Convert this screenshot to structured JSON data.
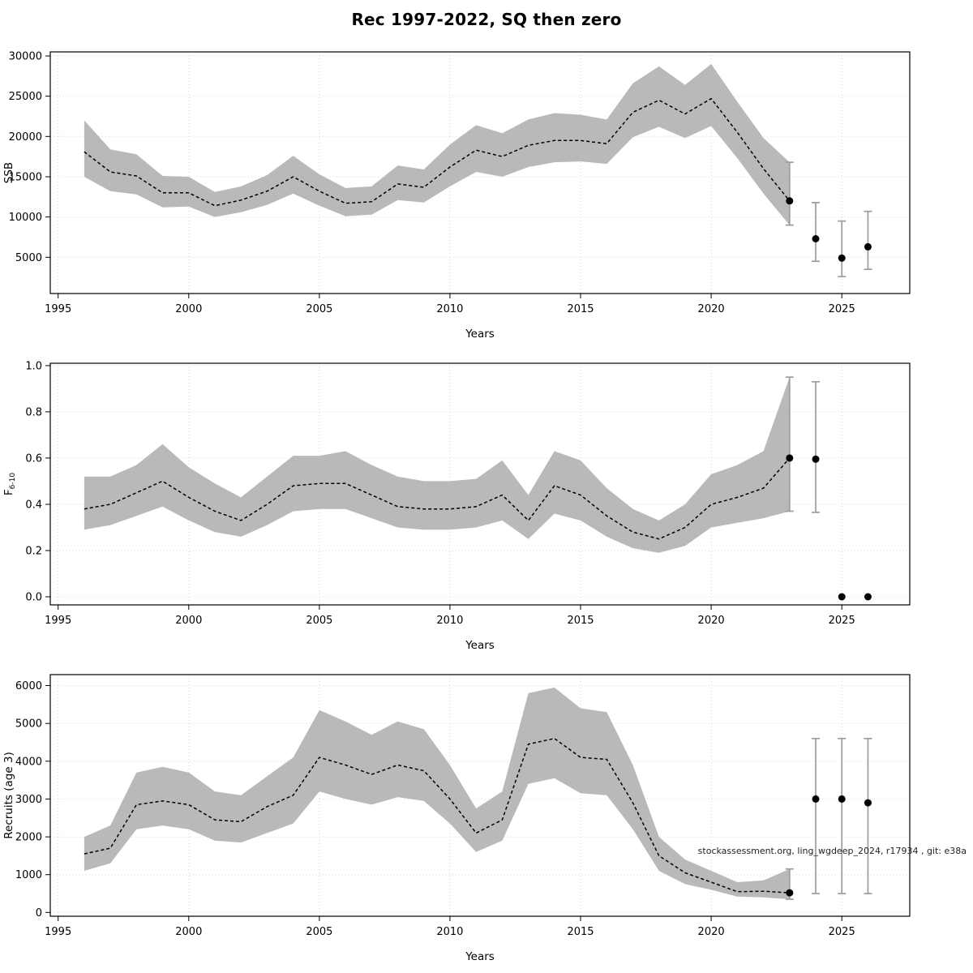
{
  "title": "Rec 1997-2022, SQ then zero",
  "watermark": "stockassessment.org, ling_wgdeep_2024, r17934 , git: e38a",
  "colors": {
    "band": "#b9b9b9",
    "median_line": "#000000",
    "error_bar": "#9c9c9c",
    "forecast_point": "#000000",
    "grid": "#d4d4d4"
  },
  "chart_data": [
    {
      "type": "line",
      "name": "ssb",
      "xlabel": "Years",
      "ylabel": "SSB",
      "ylabel_sub": "",
      "xlim": [
        1994.7,
        2027.6
      ],
      "ylim": [
        500,
        30500
      ],
      "xticks": [
        1995,
        2000,
        2005,
        2010,
        2015,
        2020,
        2025
      ],
      "xtick_labels": [
        "1995",
        "2000",
        "2005",
        "2010",
        "2015",
        "2020",
        "2025"
      ],
      "yticks": [
        5000,
        10000,
        15000,
        20000,
        25000,
        30000
      ],
      "ytick_labels": [
        "5000",
        "10000",
        "15000",
        "20000",
        "25000",
        "30000"
      ],
      "years": [
        1996,
        1997,
        1998,
        1999,
        2000,
        2001,
        2002,
        2003,
        2004,
        2005,
        2006,
        2007,
        2008,
        2009,
        2010,
        2011,
        2012,
        2013,
        2014,
        2015,
        2016,
        2017,
        2018,
        2019,
        2020,
        2021,
        2022,
        2023
      ],
      "median": [
        18100,
        15600,
        15100,
        13000,
        13000,
        11400,
        12100,
        13200,
        15000,
        13200,
        11700,
        11900,
        14100,
        13700,
        16200,
        18300,
        17500,
        18900,
        19500,
        19500,
        19100,
        23000,
        24500,
        22800,
        24700,
        20500,
        16000,
        12000
      ],
      "lower": [
        15000,
        13200,
        12800,
        11200,
        11300,
        10000,
        10600,
        11500,
        12900,
        11400,
        10100,
        10300,
        12100,
        11800,
        13800,
        15600,
        15000,
        16200,
        16800,
        16900,
        16600,
        19900,
        21200,
        19800,
        21300,
        17300,
        12900,
        9000
      ],
      "upper": [
        22000,
        18400,
        17800,
        15100,
        15000,
        13100,
        13800,
        15200,
        17600,
        15300,
        13600,
        13800,
        16400,
        15900,
        19000,
        21400,
        20400,
        22100,
        22900,
        22700,
        22100,
        26600,
        28700,
        26400,
        29000,
        24300,
        19800,
        16800
      ],
      "forecast": [
        {
          "year": 2023,
          "value": 12000,
          "lo": 9000,
          "hi": 16800
        },
        {
          "year": 2024,
          "value": 7300,
          "lo": 4500,
          "hi": 11800
        },
        {
          "year": 2025,
          "value": 4900,
          "lo": 2600,
          "hi": 9500
        },
        {
          "year": 2026,
          "value": 6300,
          "lo": 3500,
          "hi": 10700
        }
      ]
    },
    {
      "type": "line",
      "name": "fbar",
      "xlabel": "Years",
      "ylabel": "F",
      "ylabel_sub": "6-10",
      "xlim": [
        1994.7,
        2027.6
      ],
      "ylim": [
        -0.035,
        1.01
      ],
      "xticks": [
        1995,
        2000,
        2005,
        2010,
        2015,
        2020,
        2025
      ],
      "xtick_labels": [
        "1995",
        "2000",
        "2005",
        "2010",
        "2015",
        "2020",
        "2025"
      ],
      "yticks": [
        0.0,
        0.2,
        0.4,
        0.6,
        0.8,
        1.0
      ],
      "ytick_labels": [
        "0.0",
        "0.2",
        "0.4",
        "0.6",
        "0.8",
        "1.0"
      ],
      "years": [
        1996,
        1997,
        1998,
        1999,
        2000,
        2001,
        2002,
        2003,
        2004,
        2005,
        2006,
        2007,
        2008,
        2009,
        2010,
        2011,
        2012,
        2013,
        2014,
        2015,
        2016,
        2017,
        2018,
        2019,
        2020,
        2021,
        2022,
        2023
      ],
      "median": [
        0.38,
        0.4,
        0.45,
        0.5,
        0.43,
        0.37,
        0.33,
        0.4,
        0.48,
        0.49,
        0.49,
        0.44,
        0.39,
        0.38,
        0.38,
        0.39,
        0.44,
        0.33,
        0.48,
        0.44,
        0.35,
        0.28,
        0.25,
        0.3,
        0.4,
        0.43,
        0.47,
        0.6
      ],
      "lower": [
        0.29,
        0.31,
        0.35,
        0.39,
        0.33,
        0.28,
        0.26,
        0.31,
        0.37,
        0.38,
        0.38,
        0.34,
        0.3,
        0.29,
        0.29,
        0.3,
        0.33,
        0.25,
        0.36,
        0.33,
        0.26,
        0.21,
        0.19,
        0.22,
        0.3,
        0.32,
        0.34,
        0.37
      ],
      "upper": [
        0.52,
        0.52,
        0.57,
        0.66,
        0.56,
        0.49,
        0.43,
        0.52,
        0.61,
        0.61,
        0.63,
        0.57,
        0.52,
        0.5,
        0.5,
        0.51,
        0.59,
        0.44,
        0.63,
        0.59,
        0.47,
        0.38,
        0.33,
        0.4,
        0.53,
        0.57,
        0.63,
        0.95
      ],
      "forecast": [
        {
          "year": 2023,
          "value": 0.6,
          "lo": 0.37,
          "hi": 0.95
        },
        {
          "year": 2024,
          "value": 0.595,
          "lo": 0.365,
          "hi": 0.93
        },
        {
          "year": 2025,
          "value": 0.0,
          "lo": null,
          "hi": null
        },
        {
          "year": 2026,
          "value": 0.0,
          "lo": null,
          "hi": null
        }
      ]
    },
    {
      "type": "line",
      "name": "recruits",
      "xlabel": "Years",
      "ylabel": "Recruits (age 3)",
      "ylabel_sub": "",
      "xlim": [
        1994.7,
        2027.6
      ],
      "ylim": [
        -100,
        6290
      ],
      "xticks": [
        1995,
        2000,
        2005,
        2010,
        2015,
        2020,
        2025
      ],
      "xtick_labels": [
        "1995",
        "2000",
        "2005",
        "2010",
        "2015",
        "2020",
        "2025"
      ],
      "yticks": [
        0,
        1000,
        2000,
        3000,
        4000,
        5000,
        6000
      ],
      "ytick_labels": [
        "0",
        "1000",
        "2000",
        "3000",
        "4000",
        "5000",
        "6000"
      ],
      "years": [
        1996,
        1997,
        1998,
        1999,
        2000,
        2001,
        2002,
        2003,
        2004,
        2005,
        2006,
        2007,
        2008,
        2009,
        2010,
        2011,
        2012,
        2013,
        2014,
        2015,
        2016,
        2017,
        2018,
        2019,
        2020,
        2021,
        2022,
        2023
      ],
      "median": [
        1550,
        1700,
        2850,
        2950,
        2850,
        2450,
        2400,
        2800,
        3100,
        4100,
        3900,
        3650,
        3900,
        3750,
        3000,
        2100,
        2450,
        4450,
        4600,
        4100,
        4050,
        2900,
        1500,
        1050,
        800,
        550,
        560,
        520
      ],
      "lower": [
        1100,
        1300,
        2200,
        2300,
        2200,
        1900,
        1850,
        2100,
        2350,
        3200,
        3000,
        2850,
        3050,
        2950,
        2350,
        1600,
        1900,
        3400,
        3550,
        3150,
        3100,
        2200,
        1100,
        750,
        600,
        420,
        400,
        350
      ],
      "upper": [
        2000,
        2300,
        3700,
        3850,
        3700,
        3200,
        3100,
        3600,
        4100,
        5350,
        5050,
        4700,
        5050,
        4850,
        3900,
        2750,
        3200,
        5800,
        5950,
        5400,
        5300,
        3900,
        2000,
        1400,
        1100,
        800,
        850,
        1150
      ],
      "forecast": [
        {
          "year": 2023,
          "value": 520,
          "lo": 350,
          "hi": 1150
        },
        {
          "year": 2024,
          "value": 3000,
          "lo": 500,
          "hi": 4600
        },
        {
          "year": 2025,
          "value": 3000,
          "lo": 500,
          "hi": 4600
        },
        {
          "year": 2026,
          "value": 2900,
          "lo": 500,
          "hi": 4600
        }
      ]
    }
  ]
}
